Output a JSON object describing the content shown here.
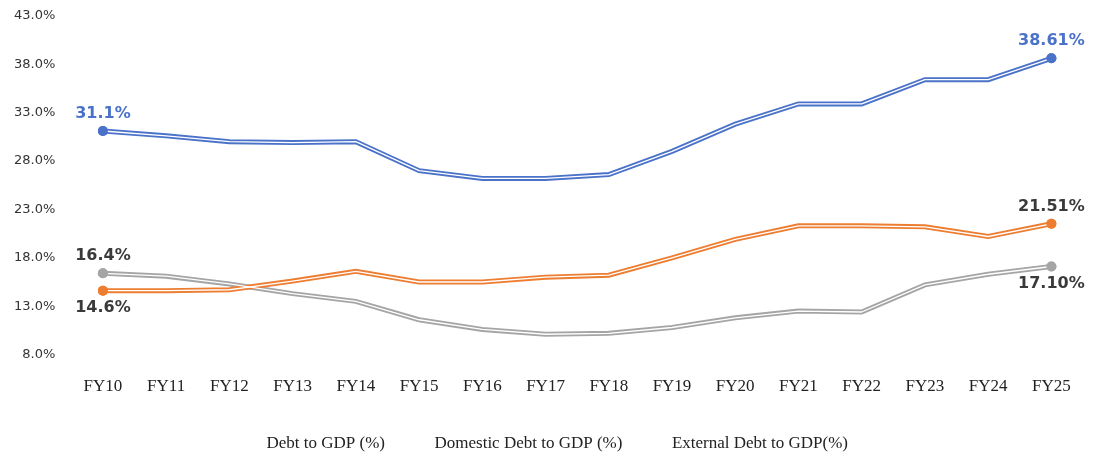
{
  "chart_data": {
    "type": "line",
    "categories": [
      "FY10",
      "FY11",
      "FY12",
      "FY13",
      "FY14",
      "FY15",
      "FY16",
      "FY17",
      "FY18",
      "FY19",
      "FY20",
      "FY21",
      "FY22",
      "FY23",
      "FY24",
      "FY25"
    ],
    "series": [
      {
        "name": "Debt to GDP (%)",
        "color": "#4a72c8",
        "values": [
          31.1,
          30.6,
          30.0,
          29.9,
          30.0,
          27.0,
          26.2,
          26.2,
          26.6,
          29.0,
          31.8,
          33.9,
          33.9,
          36.4,
          36.4,
          38.61
        ],
        "value_labels": [
          "31.1%",
          null,
          null,
          null,
          null,
          null,
          null,
          null,
          null,
          null,
          null,
          null,
          null,
          null,
          null,
          "38.61%"
        ]
      },
      {
        "name": "Domestic Debt to GDP (%)",
        "color": "#ed7d31",
        "values": [
          14.6,
          14.6,
          14.7,
          15.6,
          16.6,
          15.5,
          15.5,
          16.0,
          16.2,
          18.0,
          19.9,
          21.3,
          21.3,
          21.2,
          20.2,
          21.51
        ],
        "value_labels": [
          "14.6%",
          null,
          null,
          null,
          null,
          null,
          null,
          null,
          null,
          null,
          null,
          null,
          null,
          null,
          null,
          "21.51%"
        ]
      },
      {
        "name": "External Debt to GDP(%)",
        "color": "#a5a5a5",
        "values": [
          16.4,
          16.1,
          15.3,
          14.3,
          13.5,
          11.6,
          10.6,
          10.1,
          10.2,
          10.8,
          11.8,
          12.5,
          12.4,
          15.2,
          16.3,
          17.1
        ],
        "value_labels": [
          "16.4%",
          null,
          null,
          null,
          null,
          null,
          null,
          null,
          null,
          null,
          null,
          null,
          null,
          null,
          null,
          "17.10%"
        ]
      }
    ],
    "ylim": [
      8,
      43
    ],
    "yticks": [
      {
        "value": 8,
        "label": "8.0%"
      },
      {
        "value": 13,
        "label": "13.0%"
      },
      {
        "value": 18,
        "label": "18.0%"
      },
      {
        "value": 23,
        "label": "23.0%"
      },
      {
        "value": 28,
        "label": "28.0%"
      },
      {
        "value": 33,
        "label": "33.0%"
      },
      {
        "value": 38,
        "label": "38.0%"
      },
      {
        "value": 43,
        "label": "43.0%"
      }
    ],
    "grid": false,
    "legend": "bottom",
    "data_labels": true
  }
}
